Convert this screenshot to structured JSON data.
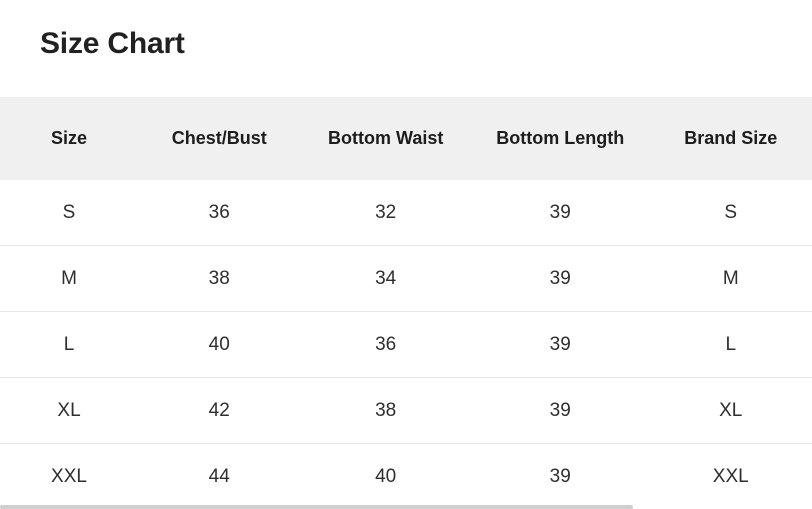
{
  "title": "Size Chart",
  "table": {
    "headers": [
      "Size",
      "Chest/Bust",
      "Bottom Waist",
      "Bottom Length",
      "Brand Size"
    ],
    "rows": [
      [
        "S",
        "36",
        "32",
        "39",
        "S"
      ],
      [
        "M",
        "38",
        "34",
        "39",
        "M"
      ],
      [
        "L",
        "40",
        "36",
        "39",
        "L"
      ],
      [
        "XL",
        "42",
        "38",
        "39",
        "XL"
      ],
      [
        "XXL",
        "44",
        "40",
        "39",
        "XXL"
      ]
    ]
  },
  "colors": {
    "title_text": "#212121",
    "header_bg": "#f0f0f0",
    "header_text": "#1d1d1d",
    "body_text": "#2e2e2e",
    "row_border": "#e7e7e7",
    "scrollbar_thumb": "#cfcfcf"
  }
}
